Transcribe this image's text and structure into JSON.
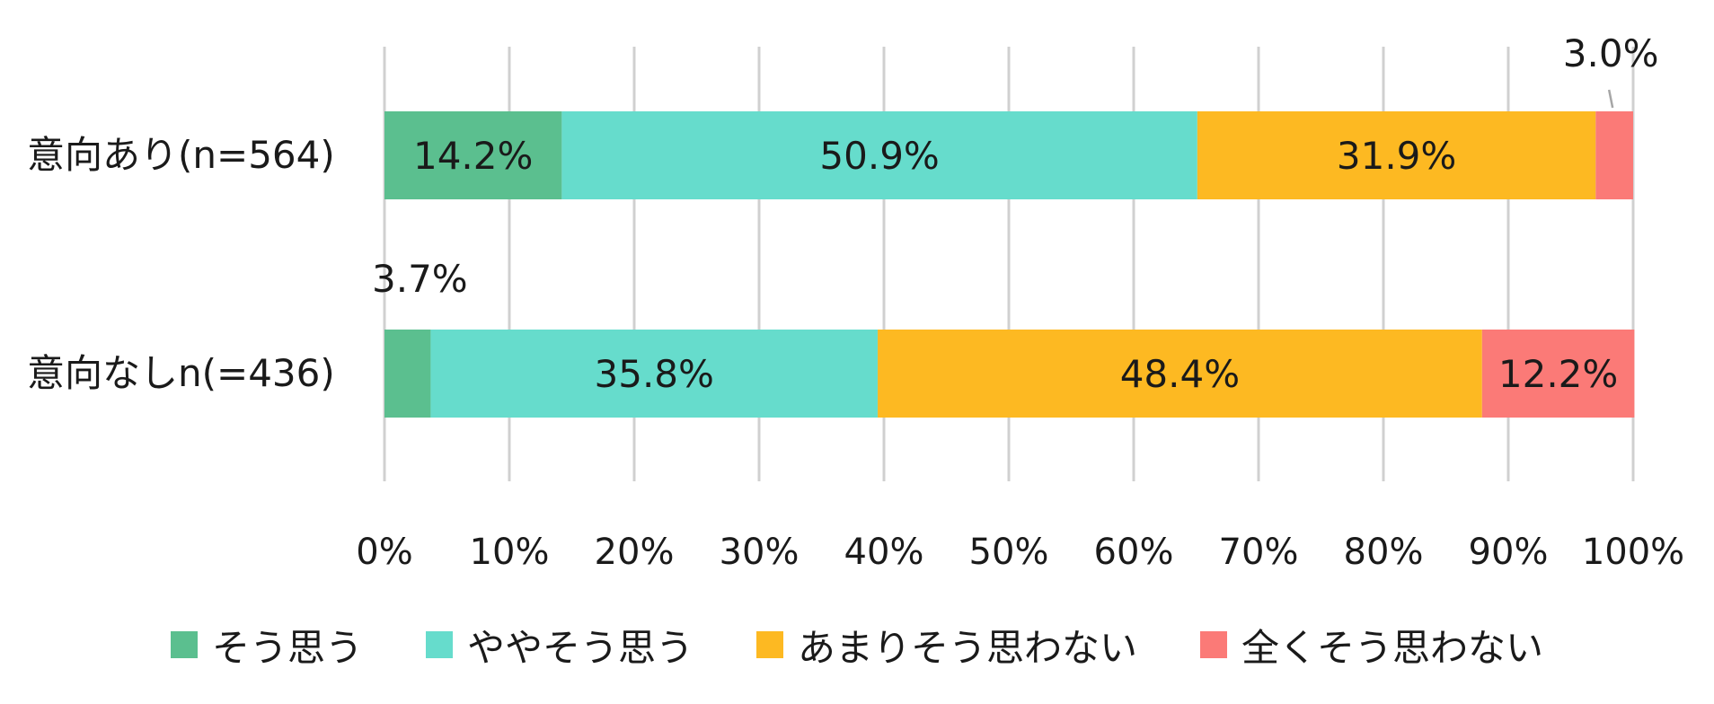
{
  "chart_data": {
    "type": "bar",
    "orientation": "horizontal",
    "stacked": true,
    "percent": true,
    "categories": [
      "意向あり(n=564)",
      "意向なしn(=436)"
    ],
    "series": [
      {
        "name": "そう思う",
        "color": "#5bbf8f",
        "values": [
          14.2,
          3.7
        ]
      },
      {
        "name": "ややそう思う",
        "color": "#66dccc",
        "values": [
          50.9,
          35.8
        ]
      },
      {
        "name": "あまりそう思わない",
        "color": "#fdb922",
        "values": [
          31.9,
          48.4
        ]
      },
      {
        "name": "全くそう思わない",
        "color": "#fb7a77",
        "values": [
          3.0,
          12.2
        ]
      }
    ],
    "data_labels": [
      [
        "14.2%",
        "50.9%",
        "31.9%",
        "3.0%"
      ],
      [
        "3.7%",
        "35.8%",
        "48.4%",
        "12.2%"
      ]
    ],
    "x_ticks": [
      "0%",
      "10%",
      "20%",
      "30%",
      "40%",
      "50%",
      "60%",
      "70%",
      "80%",
      "90%",
      "100%"
    ],
    "xlim": [
      0,
      100
    ],
    "grid": "vertical",
    "legend_position": "bottom"
  }
}
